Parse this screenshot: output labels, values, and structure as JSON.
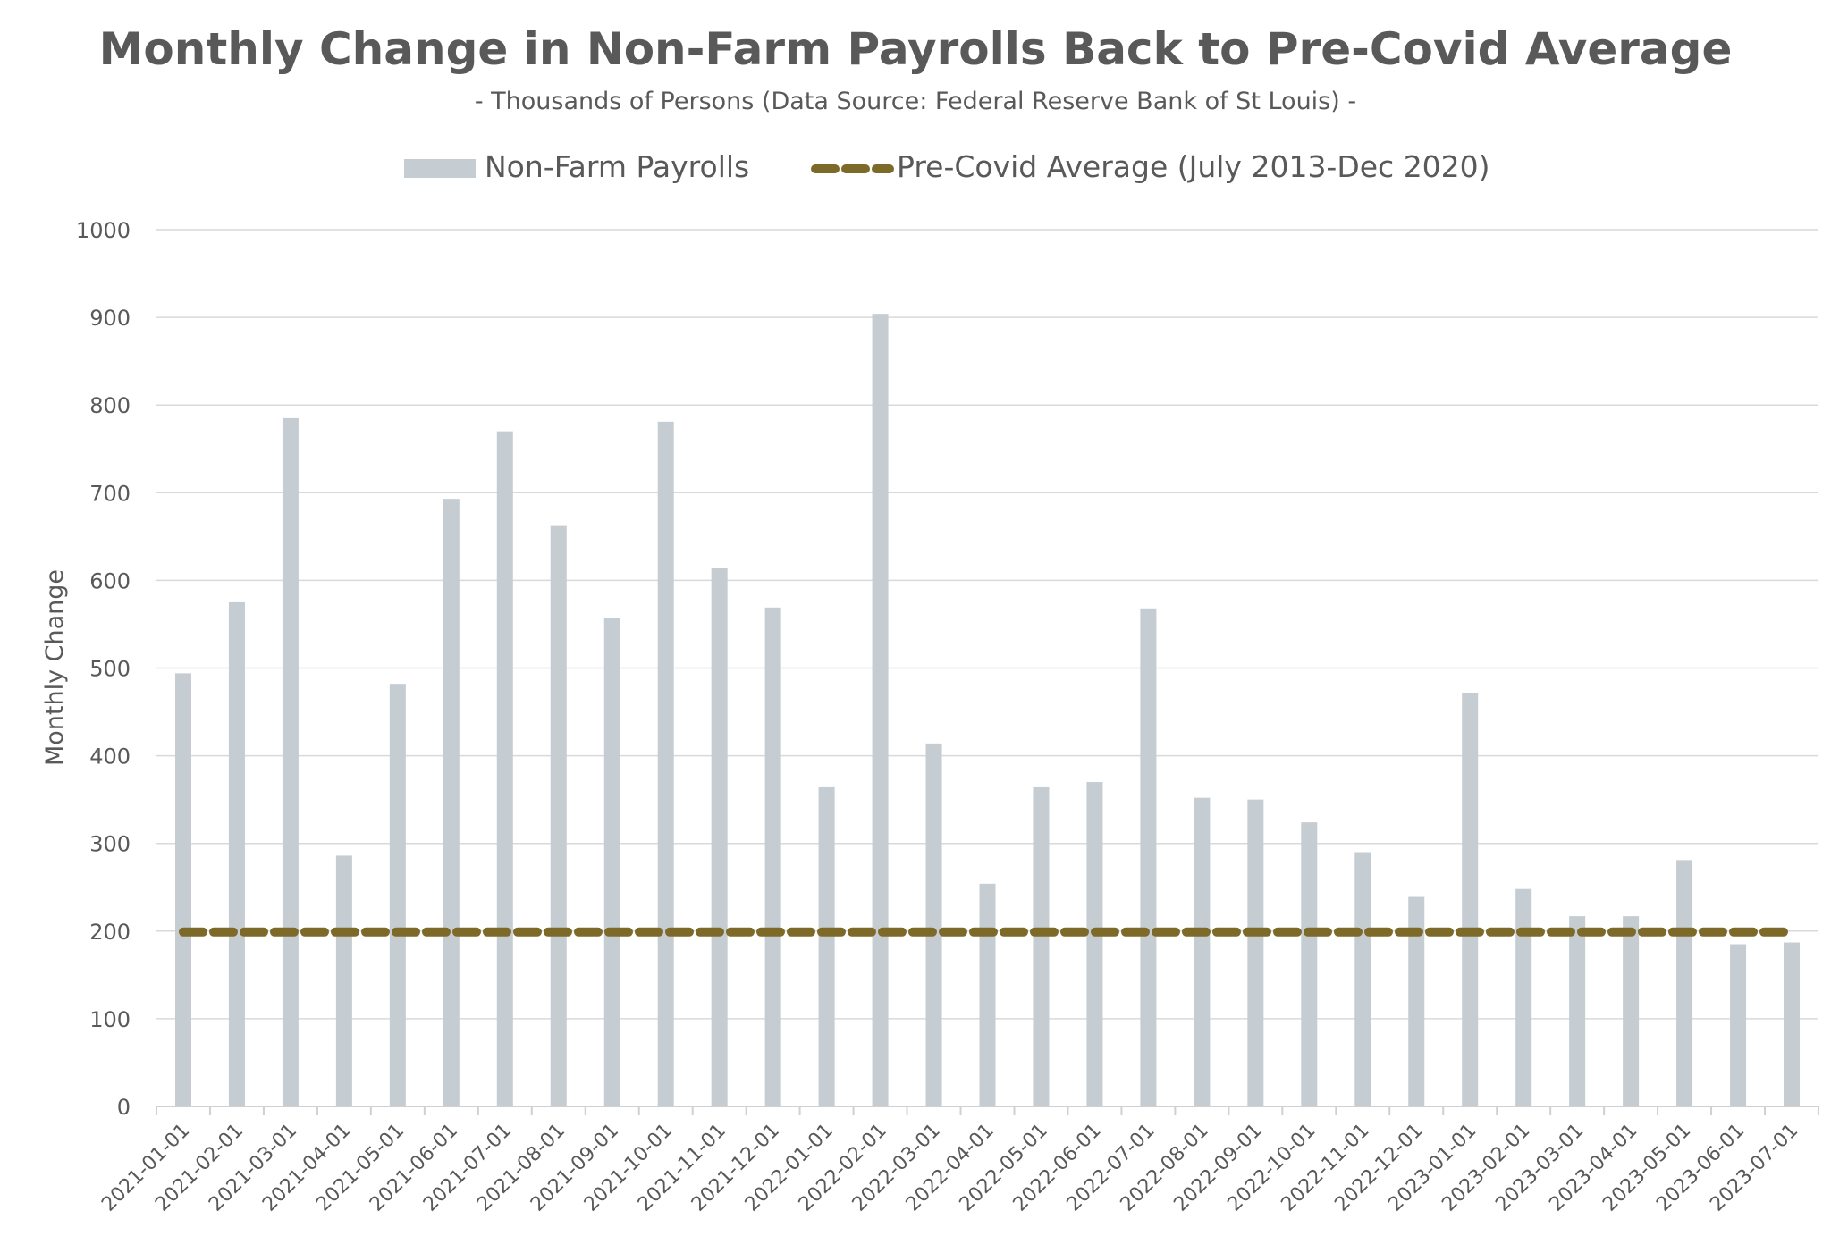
{
  "chart_data": {
    "type": "bar",
    "title": "Monthly Change in Non-Farm Payrolls Back to Pre-Covid Average",
    "subtitle": "- Thousands of Persons (Data Source: Federal Reserve Bank of St Louis) -",
    "ylabel": "Monthly Change",
    "xlabel": "",
    "ylim": [
      0,
      1000
    ],
    "yticks": [
      0,
      100,
      200,
      300,
      400,
      500,
      600,
      700,
      800,
      900,
      1000
    ],
    "grid": true,
    "legend_position": "top",
    "categories": [
      "2021-01-01",
      "2021-02-01",
      "2021-03-01",
      "2021-04-01",
      "2021-05-01",
      "2021-06-01",
      "2021-07-01",
      "2021-08-01",
      "2021-09-01",
      "2021-10-01",
      "2021-11-01",
      "2021-12-01",
      "2022-01-01",
      "2022-02-01",
      "2022-03-01",
      "2022-04-01",
      "2022-05-01",
      "2022-06-01",
      "2022-07-01",
      "2022-08-01",
      "2022-09-01",
      "2022-10-01",
      "2022-11-01",
      "2022-12-01",
      "2023-01-01",
      "2023-02-01",
      "2023-03-01",
      "2023-04-01",
      "2023-05-01",
      "2023-06-01",
      "2023-07-01"
    ],
    "series": [
      {
        "name": "Non-Farm Payrolls",
        "kind": "bar",
        "color": "#c5ccd2",
        "values": [
          494,
          575,
          785,
          286,
          482,
          693,
          770,
          663,
          557,
          781,
          614,
          569,
          364,
          904,
          414,
          254,
          364,
          370,
          568,
          352,
          350,
          324,
          290,
          239,
          472,
          248,
          217,
          217,
          281,
          185,
          187
        ]
      },
      {
        "name": "Pre-Covid Average (July 2013-Dec 2020)",
        "kind": "line",
        "style": "dashed",
        "color": "#7e6a28",
        "values": [
          199,
          199,
          199,
          199,
          199,
          199,
          199,
          199,
          199,
          199,
          199,
          199,
          199,
          199,
          199,
          199,
          199,
          199,
          199,
          199,
          199,
          199,
          199,
          199,
          199,
          199,
          199,
          199,
          199,
          199,
          199
        ]
      }
    ]
  }
}
